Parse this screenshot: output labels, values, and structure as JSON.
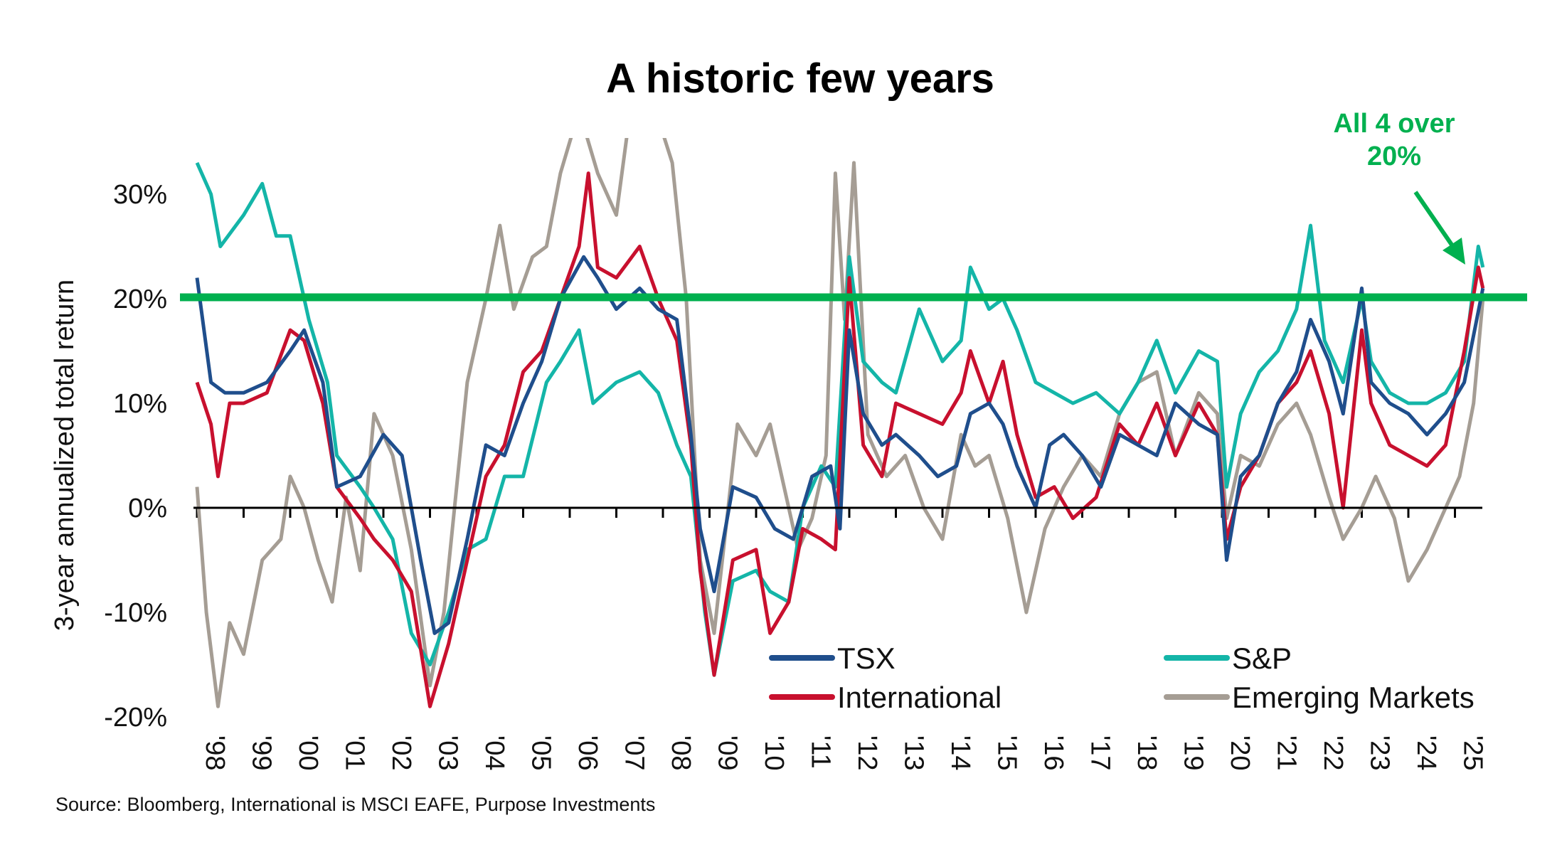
{
  "chart_data": {
    "type": "line",
    "title": "A historic few years",
    "xlabel": "",
    "ylabel": "3-year annualized total return",
    "ylim": [
      -20,
      35.4
    ],
    "xlim": [
      1998,
      2025.7
    ],
    "y_ticks": [
      "-20%",
      "-10%",
      "0%",
      "10%",
      "20%",
      "30%"
    ],
    "y_tick_values": [
      -20,
      -10,
      0,
      10,
      20,
      30
    ],
    "x_ticks": [
      "'98",
      "'99",
      "'00",
      "'01",
      "'02",
      "'03",
      "'04",
      "'05",
      "'06",
      "'07",
      "'08",
      "'09",
      "'10",
      "'11",
      "'12",
      "'13",
      "'14",
      "'15",
      "'16",
      "'17",
      "'18",
      "'19",
      "'20",
      "'21",
      "'22",
      "'23",
      "'24",
      "'25"
    ],
    "reference_line": {
      "value": 20,
      "color": "#00b04f"
    },
    "annotation": {
      "lines": [
        "All 4 over",
        "20%"
      ],
      "color": "#00b04f"
    },
    "source": "Source: Bloomberg, International is MSCI EAFE, Purpose Investments",
    "legend_position": "bottom-right",
    "series": [
      {
        "name": "TSX",
        "color": "#1f4e8c",
        "x": [
          1998,
          1998.3,
          1998.6,
          1999,
          1999.5,
          2000,
          2000.3,
          2000.7,
          2001,
          2001.5,
          2002,
          2002.4,
          2002.8,
          2003.1,
          2003.4,
          2003.8,
          2004.2,
          2004.6,
          2005,
          2005.4,
          2005.8,
          2006.3,
          2006.6,
          2007,
          2007.5,
          2007.9,
          2008.3,
          2008.6,
          2008.8,
          2009.1,
          2009.5,
          2010,
          2010.4,
          2010.8,
          2011.2,
          2011.6,
          2011.8,
          2012,
          2012.3,
          2012.7,
          2013,
          2013.5,
          2013.9,
          2014.3,
          2014.6,
          2015,
          2015.3,
          2015.6,
          2016,
          2016.3,
          2016.6,
          2017,
          2017.4,
          2017.8,
          2018.2,
          2018.6,
          2019,
          2019.5,
          2019.9,
          2020.1,
          2020.4,
          2020.8,
          2021.2,
          2021.6,
          2021.9,
          2022.3,
          2022.6,
          2023,
          2023.2,
          2023.6,
          2024,
          2024.4,
          2024.8,
          2025.2,
          2025.6
        ],
        "y": [
          22,
          12,
          11,
          11,
          12,
          15,
          17,
          12,
          2,
          3,
          7,
          5,
          -5,
          -12,
          -11,
          -3,
          6,
          5,
          10,
          14,
          20,
          24,
          22,
          19,
          21,
          19,
          18,
          7,
          -2,
          -8,
          2,
          1,
          -2,
          -3,
          3,
          4,
          -2,
          17,
          9,
          6,
          7,
          5,
          3,
          4,
          9,
          10,
          8,
          4,
          0,
          6,
          7,
          5,
          2,
          7,
          6,
          5,
          10,
          8,
          7,
          -5,
          3,
          5,
          10,
          13,
          18,
          14,
          9,
          21,
          12,
          10,
          9,
          7,
          9,
          12,
          21
        ]
      },
      {
        "name": "S&P",
        "color": "#14b5a8",
        "x": [
          1998,
          1998.3,
          1998.5,
          1999,
          1999.4,
          1999.7,
          2000,
          2000.4,
          2000.8,
          2001,
          2001.5,
          2001.8,
          2002.2,
          2002.6,
          2003,
          2003.4,
          2003.8,
          2004.2,
          2004.6,
          2005,
          2005.5,
          2005.8,
          2006.2,
          2006.5,
          2007,
          2007.5,
          2007.9,
          2008.3,
          2008.6,
          2008.9,
          2009.1,
          2009.5,
          2010,
          2010.3,
          2010.7,
          2011,
          2011.4,
          2011.7,
          2012,
          2012.3,
          2012.7,
          2013,
          2013.5,
          2014,
          2014.4,
          2014.6,
          2015,
          2015.3,
          2015.6,
          2016,
          2016.4,
          2016.8,
          2017.3,
          2017.8,
          2018.2,
          2018.6,
          2019,
          2019.5,
          2019.9,
          2020.1,
          2020.4,
          2020.8,
          2021.2,
          2021.6,
          2021.9,
          2022.2,
          2022.6,
          2023,
          2023.2,
          2023.6,
          2024,
          2024.4,
          2024.8,
          2025.2,
          2025.5,
          2025.6
        ],
        "y": [
          33,
          30,
          25,
          28,
          31,
          26,
          26,
          18,
          12,
          5,
          2,
          0,
          -3,
          -12,
          -15,
          -10,
          -4,
          -3,
          3,
          3,
          12,
          14,
          17,
          10,
          12,
          13,
          11,
          6,
          3,
          -10,
          -16,
          -7,
          -6,
          -8,
          -9,
          0,
          4,
          2,
          24,
          14,
          12,
          11,
          19,
          14,
          16,
          23,
          19,
          20,
          17,
          12,
          11,
          10,
          11,
          9,
          12,
          16,
          11,
          15,
          14,
          2,
          9,
          13,
          15,
          19,
          27,
          16,
          12,
          20,
          14,
          11,
          10,
          10,
          11,
          14,
          25,
          23
        ]
      },
      {
        "name": "International",
        "color": "#c8102e",
        "x": [
          1998,
          1998.3,
          1998.45,
          1998.7,
          1999,
          1999.5,
          2000,
          2000.3,
          2000.7,
          2001,
          2001.5,
          2001.8,
          2002.2,
          2002.6,
          2003,
          2003.4,
          2003.8,
          2004.2,
          2004.6,
          2005,
          2005.4,
          2005.8,
          2006.2,
          2006.4,
          2006.6,
          2007,
          2007.5,
          2007.9,
          2008.3,
          2008.6,
          2008.8,
          2009.1,
          2009.5,
          2010,
          2010.3,
          2010.7,
          2011,
          2011.4,
          2011.7,
          2012,
          2012.3,
          2012.7,
          2013,
          2013.5,
          2014,
          2014.4,
          2014.6,
          2015,
          2015.3,
          2015.6,
          2016,
          2016.4,
          2016.8,
          2017.3,
          2017.8,
          2018.2,
          2018.6,
          2019,
          2019.5,
          2019.9,
          2020.1,
          2020.4,
          2020.8,
          2021.2,
          2021.6,
          2021.9,
          2022.3,
          2022.6,
          2023,
          2023.2,
          2023.6,
          2024,
          2024.4,
          2024.8,
          2025.2,
          2025.5,
          2025.6
        ],
        "y": [
          12,
          8,
          3,
          10,
          10,
          11,
          17,
          16,
          10,
          2,
          -1,
          -3,
          -5,
          -8,
          -19,
          -13,
          -5,
          3,
          6,
          13,
          15,
          20,
          25,
          32,
          23,
          22,
          25,
          20,
          16,
          6,
          -6,
          -16,
          -5,
          -4,
          -12,
          -9,
          -2,
          -3,
          -4,
          22,
          6,
          3,
          10,
          9,
          8,
          11,
          15,
          10,
          14,
          7,
          1,
          2,
          -1,
          1,
          8,
          6,
          10,
          5,
          10,
          7,
          -3,
          2,
          5,
          10,
          12,
          15,
          9,
          0,
          17,
          10,
          6,
          5,
          4,
          6,
          15,
          23,
          21
        ]
      },
      {
        "name": "Emerging Markets",
        "color": "#a59d94",
        "x": [
          1998,
          1998.2,
          1998.45,
          1998.7,
          1999,
          1999.4,
          1999.8,
          2000,
          2000.3,
          2000.6,
          2000.9,
          2001.2,
          2001.5,
          2001.8,
          2002.2,
          2002.6,
          2003,
          2003.3,
          2003.8,
          2004.2,
          2004.5,
          2004.8,
          2005.2,
          2005.5,
          2005.8,
          2006.2,
          2006.6,
          2007,
          2007.3,
          2007.7,
          2008.2,
          2008.5,
          2008.8,
          2009.1,
          2009.4,
          2009.6,
          2010,
          2010.3,
          2010.6,
          2010.9,
          2011.2,
          2011.5,
          2011.7,
          2011.9,
          2012.1,
          2012.4,
          2012.8,
          2013.2,
          2013.6,
          2014,
          2014.4,
          2014.7,
          2015,
          2015.4,
          2015.8,
          2016.2,
          2016.6,
          2017,
          2017.4,
          2017.8,
          2018.2,
          2018.6,
          2019,
          2019.5,
          2019.9,
          2020.1,
          2020.4,
          2020.8,
          2021.2,
          2021.6,
          2021.9,
          2022.3,
          2022.6,
          2023,
          2023.3,
          2023.7,
          2024,
          2024.4,
          2024.8,
          2025.1,
          2025.4,
          2025.6
        ],
        "y": [
          2,
          -10,
          -19,
          -11,
          -14,
          -5,
          -3,
          3,
          0,
          -5,
          -9,
          1,
          -6,
          9,
          5,
          -4,
          -17,
          -10,
          12,
          20,
          27,
          19,
          24,
          25,
          32,
          38,
          32,
          28,
          38,
          40,
          33,
          20,
          -5,
          -12,
          0,
          8,
          5,
          8,
          2,
          -4,
          -1,
          5,
          32,
          18,
          33,
          7,
          3,
          5,
          0,
          -3,
          7,
          4,
          5,
          -1,
          -10,
          -2,
          2,
          5,
          3,
          9,
          12,
          13,
          5,
          11,
          9,
          -1,
          5,
          4,
          8,
          10,
          7,
          1,
          -3,
          0,
          3,
          -1,
          -7,
          -4,
          0,
          3,
          10,
          20
        ]
      }
    ]
  }
}
